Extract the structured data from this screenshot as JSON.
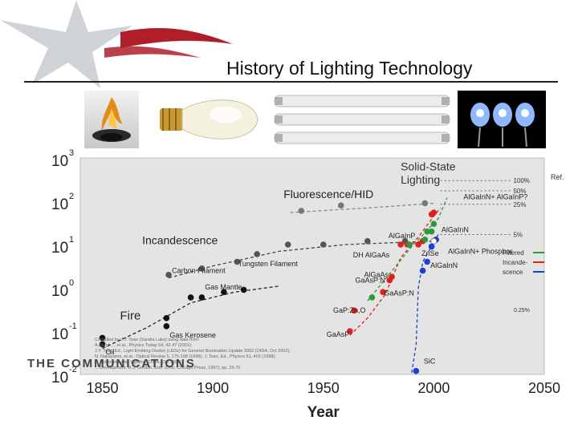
{
  "slide": {
    "title": "History of Lighting Technology",
    "accent_color": "#b01e2a",
    "footer_logo_text": "THE COMMUNICATIONS"
  },
  "thumbnails": [
    {
      "name": "fire-photo"
    },
    {
      "name": "incandescent-bulb-photo"
    },
    {
      "name": "fluorescent-tubes-photo"
    },
    {
      "name": "led-photo"
    }
  ],
  "chart_data": {
    "type": "scatter",
    "xlabel": "Year",
    "ylabel": "",
    "yscale": "log",
    "xlim": [
      1840,
      2050
    ],
    "ylim": [
      0.01,
      1000
    ],
    "x_ticks": [
      1850,
      1900,
      1950,
      2000,
      2050
    ],
    "y_ticks": [
      {
        "base": "10",
        "exp": "-2"
      },
      {
        "base": "10",
        "exp": "-1"
      },
      {
        "base": "10",
        "exp": "0"
      },
      {
        "base": "10",
        "exp": "1"
      },
      {
        "base": "10",
        "exp": "2"
      },
      {
        "base": "10",
        "exp": "3"
      }
    ],
    "group_labels": {
      "fire": "Fire",
      "incandescence": "Incandescence",
      "fluorescence": "Fluorescence/HID",
      "solid_state": "Solid-State Lighting"
    },
    "point_labels": [
      {
        "text": "Oil",
        "x": 1850,
        "y": 0.033
      },
      {
        "text": "Gas Kerosene",
        "x": 1879,
        "y": 0.08
      },
      {
        "text": "Gas Mantle",
        "x": 1895,
        "y": 1.05
      },
      {
        "text": "Carbon Filament",
        "x": 1880,
        "y": 2.5
      },
      {
        "text": "Tungsten Filament",
        "x": 1910,
        "y": 3.6
      },
      {
        "text": "AlGaInN",
        "x": 2002,
        "y": 22
      },
      {
        "text": "AlGaInP",
        "x": 1978,
        "y": 16
      },
      {
        "text": "AlGaInN+ Phosphor",
        "x": 2005,
        "y": 7
      },
      {
        "text": "DH AlGaAs",
        "x": 1962,
        "y": 5.8
      },
      {
        "text": "ZnSe",
        "x": 1993,
        "y": 6.3
      },
      {
        "text": "AlGaInN",
        "x": 1997,
        "y": 3.3
      },
      {
        "text": "AlGaAs",
        "x": 1967,
        "y": 2.0
      },
      {
        "text": "GaAsP:N",
        "x": 1963,
        "y": 1.5
      },
      {
        "text": "GaAsP:N",
        "x": 1976,
        "y": 0.75
      },
      {
        "text": "GaP:Zn,O",
        "x": 1953,
        "y": 0.3
      },
      {
        "text": "GaAsP",
        "x": 1950,
        "y": 0.085
      },
      {
        "text": "SiC",
        "x": 1994,
        "y": 0.02
      },
      {
        "text": "AlGaInN+ AlGaInP?",
        "x": 2012,
        "y": 127
      }
    ],
    "efficiency_targets": [
      {
        "label": "100%",
        "y": 300
      },
      {
        "label": "50%",
        "y": 175
      },
      {
        "label": "25%",
        "y": 85
      },
      {
        "label": "5%",
        "y": 17
      }
    ],
    "legend": [
      {
        "label": "Filtered",
        "color": "#2a9a3a"
      },
      {
        "label": "Incande-",
        "color": "#e02020"
      },
      {
        "label": "scence",
        "color": "#1b3fd0"
      }
    ],
    "legend_note": "0.25%",
    "corner_note": "Ref.",
    "series": [
      {
        "name": "fire",
        "color": "#111111",
        "points": [
          [
            1850,
            0.07
          ],
          [
            1850,
            0.05
          ],
          [
            1879,
            0.2
          ],
          [
            1879,
            0.13
          ],
          [
            1890,
            0.6
          ],
          [
            1895,
            0.6
          ],
          [
            1905,
            0.8
          ],
          [
            1914,
            0.9
          ]
        ]
      },
      {
        "name": "incandescence",
        "color": "#555555",
        "points": [
          [
            1880,
            2
          ],
          [
            1895,
            2.8
          ],
          [
            1911,
            4
          ],
          [
            1920,
            6
          ],
          [
            1934,
            10
          ],
          [
            1950,
            10
          ],
          [
            1970,
            12
          ],
          [
            1987,
            12
          ],
          [
            2000,
            12
          ]
        ]
      },
      {
        "name": "fluorescence",
        "color": "#777777",
        "points": [
          [
            1940,
            60
          ],
          [
            1958,
            80
          ],
          [
            1996,
            90
          ]
        ]
      },
      {
        "name": "red",
        "color": "#e02020",
        "points": [
          [
            1962,
            0.1
          ],
          [
            1964,
            0.3
          ],
          [
            1977,
            0.8
          ],
          [
            1980,
            1.5
          ],
          [
            1981,
            1.8
          ],
          [
            1985,
            10
          ],
          [
            1988,
            10
          ],
          [
            1995,
            12
          ],
          [
            1999,
            50
          ],
          [
            2000,
            55
          ],
          [
            1993,
            10
          ]
        ]
      },
      {
        "name": "green",
        "color": "#2a9a3a",
        "points": [
          [
            1972,
            0.6
          ],
          [
            1989,
            10
          ],
          [
            1996,
            13
          ],
          [
            1997,
            20
          ],
          [
            1999,
            20
          ],
          [
            2000,
            30
          ]
        ]
      },
      {
        "name": "blue",
        "color": "#1b3fd0",
        "points": [
          [
            1992,
            0.012
          ],
          [
            1995,
            2.5
          ],
          [
            1997,
            4
          ],
          [
            1999,
            9
          ],
          [
            2001,
            13
          ]
        ]
      },
      {
        "name": "white",
        "color": "#ffffff",
        "points": [
          [
            2000,
            12
          ]
        ]
      }
    ],
    "source_lines": [
      "Compiled by J.Y. Tsao (Sandia Labs) using data from:",
      "A.Bergh ... et al., Physics Today 54, 42-47 (2001);",
      "J.Y. Tsao, Ed., Light Emitting Diodes (LEDs) for General Illumination Update 2002 (OIDA, Oct 2002);",
      "N. Nakayama, et al., Optical Review 5, 175-198 (1998); J. Tsao, Ed., Physics 51, 403 (1998);",
      "... Semiconductor Lighting (OIDA, Oct 1999);",
      "... Development, R.J. Gordon, Eds. (Univ. Chicago Press, 1997), pp. 26-70"
    ]
  }
}
